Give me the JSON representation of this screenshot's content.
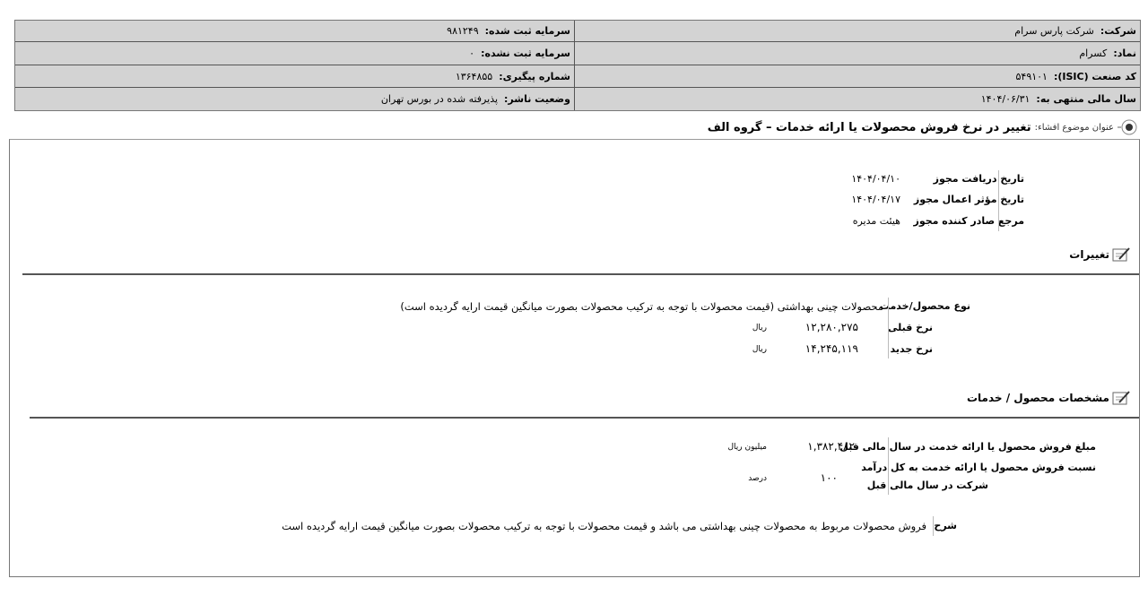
{
  "header": {
    "company": {
      "label": "شرکت:",
      "value": "شرکت پارس سرام"
    },
    "symbol": {
      "label": "نماد:",
      "value": "کسرام"
    },
    "isic": {
      "label": "کد صنعت (ISIC):",
      "value": "۵۴۹۱۰۱"
    },
    "fiscal_year": {
      "label": "سال مالی منتهی به:",
      "value": "۱۴۰۴/۰۶/۳۱"
    },
    "registered_capital": {
      "label": "سرمایه ثبت شده:",
      "value": "۹۸۱۲۴۹"
    },
    "unregistered_capital": {
      "label": "سرمایه ثبت نشده:",
      "value": "۰"
    },
    "tracking_number": {
      "label": "شماره پیگیری:",
      "value": "۱۳۶۴۸۵۵"
    },
    "publisher_status": {
      "label": "وضعیت ناشر:",
      "value": "پذیرفته شده در بورس تهران"
    }
  },
  "title": {
    "label": "عنوان موضوع افشاء:",
    "value": "تغییر در نرخ فروش محصولات یا ارائه خدمات – گروه الف"
  },
  "permit": [
    {
      "label": "تاریخ دریافت مجوز",
      "value": "۱۴۰۴/۰۴/۱۰"
    },
    {
      "label": "تاریخ مؤثر اعمال مجوز",
      "value": "۱۴۰۴/۰۴/۱۷"
    },
    {
      "label": "مرجع صادر کننده مجوز",
      "value": "هیئت مدیره"
    }
  ],
  "changes": {
    "heading": "تغییرات",
    "product_type": {
      "label": "نوع محصول/خدمت",
      "value": "محصولات چینی بهداشتی (قیمت محصولات با توجه به ترکیب محصولات بصورت میانگین قیمت ارایه گردیده است)"
    },
    "old_rate": {
      "label": "نرخ قبلی",
      "value": "۱۲,۲۸۰,۲۷۵",
      "unit": "ریال"
    },
    "new_rate": {
      "label": "نرخ جدید",
      "value": "۱۴,۲۴۵,۱۱۹",
      "unit": "ریال"
    }
  },
  "specs": {
    "heading": "مشخصات محصول / خدمات",
    "sales_amount": {
      "label": "مبلغ فروش محصول یا ارائه خدمت در سال مالی قبل",
      "value": "۱,۳۸۲,۴۸۲",
      "unit": "میلیون ریال"
    },
    "sales_ratio": {
      "label1": "نسبت فروش محصول یا ارائه خدمت به کل درآمد",
      "label2": "شرکت در سال مالی قبل",
      "value": "۱۰۰",
      "unit": "درصد"
    },
    "description": {
      "label": "شرح",
      "value": "فروش محصولات مربوط به محصولات چینی بهداشتی می باشد و قیمت محصولات با توجه به ترکیب محصولات بصورت میانگین قیمت ارایه گردیده است"
    }
  }
}
